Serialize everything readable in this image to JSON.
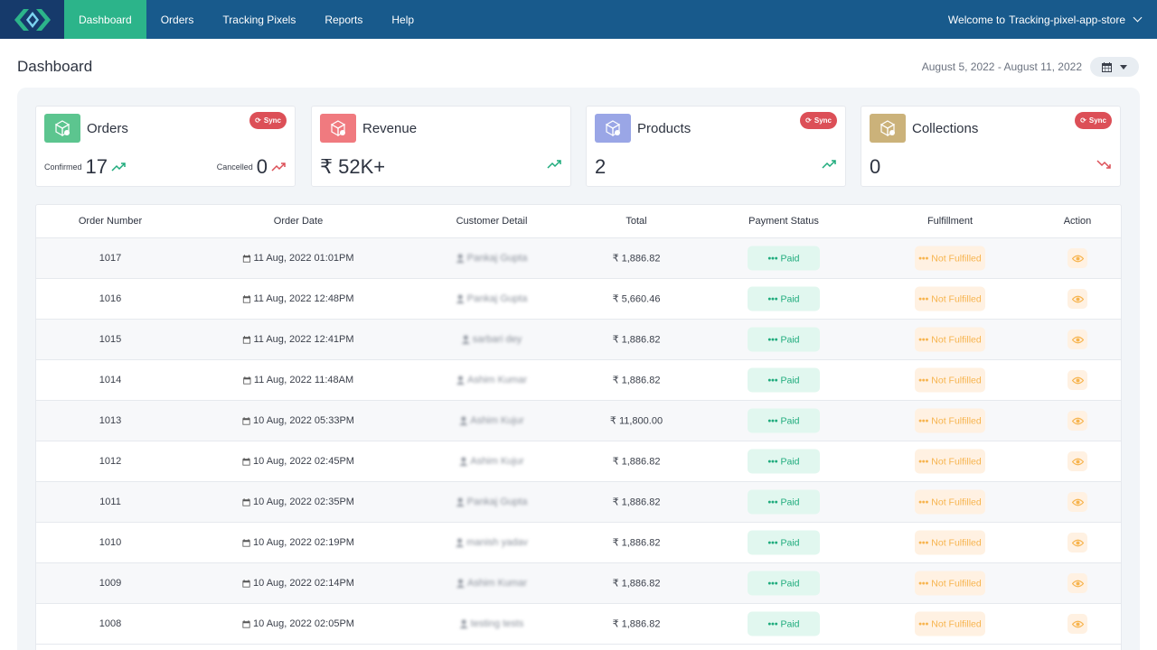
{
  "nav": {
    "items": [
      "Dashboard",
      "Orders",
      "Tracking Pixels",
      "Reports",
      "Help"
    ],
    "active": "Dashboard",
    "welcome": "Welcome to",
    "store": "Tracking-pixel-app-store"
  },
  "header": {
    "title": "Dashboard",
    "date_range": "August 5, 2022 - August 11, 2022"
  },
  "cards": [
    {
      "title": "Orders",
      "icon": "box-icon",
      "color": "#5cc58f",
      "sync": "Sync",
      "confirmed_label": "Confirmed",
      "confirmed_value": "17",
      "cancelled_label": "Cancelled",
      "cancelled_value": "0"
    },
    {
      "title": "Revenue",
      "icon": "box-icon",
      "color": "#f07a7f",
      "value": "₹ 52K+",
      "trend": "up"
    },
    {
      "title": "Products",
      "icon": "box-icon",
      "color": "#9aa6e6",
      "sync": "Sync",
      "value": "2",
      "trend": "up"
    },
    {
      "title": "Collections",
      "icon": "box-icon",
      "color": "#cbb27a",
      "sync": "Sync",
      "value": "0",
      "trend": "down"
    }
  ],
  "colors": {
    "trend_up": "#1eab7c",
    "trend_down": "#dc4f57"
  },
  "table": {
    "columns": [
      "Order Number",
      "Order Date",
      "Customer Detail",
      "Total",
      "Payment Status",
      "Fulfillment",
      "Action"
    ],
    "rows": [
      {
        "order": "1017",
        "date": "11 Aug, 2022 01:01PM",
        "customer": "Pankaj Gupta",
        "total": "₹ 1,886.82",
        "payment": "Paid",
        "fulfillment": "Not Fulfilled"
      },
      {
        "order": "1016",
        "date": "11 Aug, 2022 12:48PM",
        "customer": "Pankaj Gupta",
        "total": "₹ 5,660.46",
        "payment": "Paid",
        "fulfillment": "Not Fulfilled"
      },
      {
        "order": "1015",
        "date": "11 Aug, 2022 12:41PM",
        "customer": "sarbari dey",
        "total": "₹ 1,886.82",
        "payment": "Paid",
        "fulfillment": "Not Fulfilled"
      },
      {
        "order": "1014",
        "date": "11 Aug, 2022 11:48AM",
        "customer": "Ashim Kumar",
        "total": "₹ 1,886.82",
        "payment": "Paid",
        "fulfillment": "Not Fulfilled"
      },
      {
        "order": "1013",
        "date": "10 Aug, 2022 05:33PM",
        "customer": "Ashim Kujur",
        "total": "₹ 11,800.00",
        "payment": "Paid",
        "fulfillment": "Not Fulfilled"
      },
      {
        "order": "1012",
        "date": "10 Aug, 2022 02:45PM",
        "customer": "Ashim Kujur",
        "total": "₹ 1,886.82",
        "payment": "Paid",
        "fulfillment": "Not Fulfilled"
      },
      {
        "order": "1011",
        "date": "10 Aug, 2022 02:35PM",
        "customer": "Pankaj Gupta",
        "total": "₹ 1,886.82",
        "payment": "Paid",
        "fulfillment": "Not Fulfilled"
      },
      {
        "order": "1010",
        "date": "10 Aug, 2022 02:19PM",
        "customer": "manish yadav",
        "total": "₹ 1,886.82",
        "payment": "Paid",
        "fulfillment": "Not Fulfilled"
      },
      {
        "order": "1009",
        "date": "10 Aug, 2022 02:14PM",
        "customer": "Ashim Kumar",
        "total": "₹ 1,886.82",
        "payment": "Paid",
        "fulfillment": "Not Fulfilled"
      },
      {
        "order": "1008",
        "date": "10 Aug, 2022 02:05PM",
        "customer": "testing tests",
        "total": "₹ 1,886.82",
        "payment": "Paid",
        "fulfillment": "Not Fulfilled"
      }
    ]
  }
}
